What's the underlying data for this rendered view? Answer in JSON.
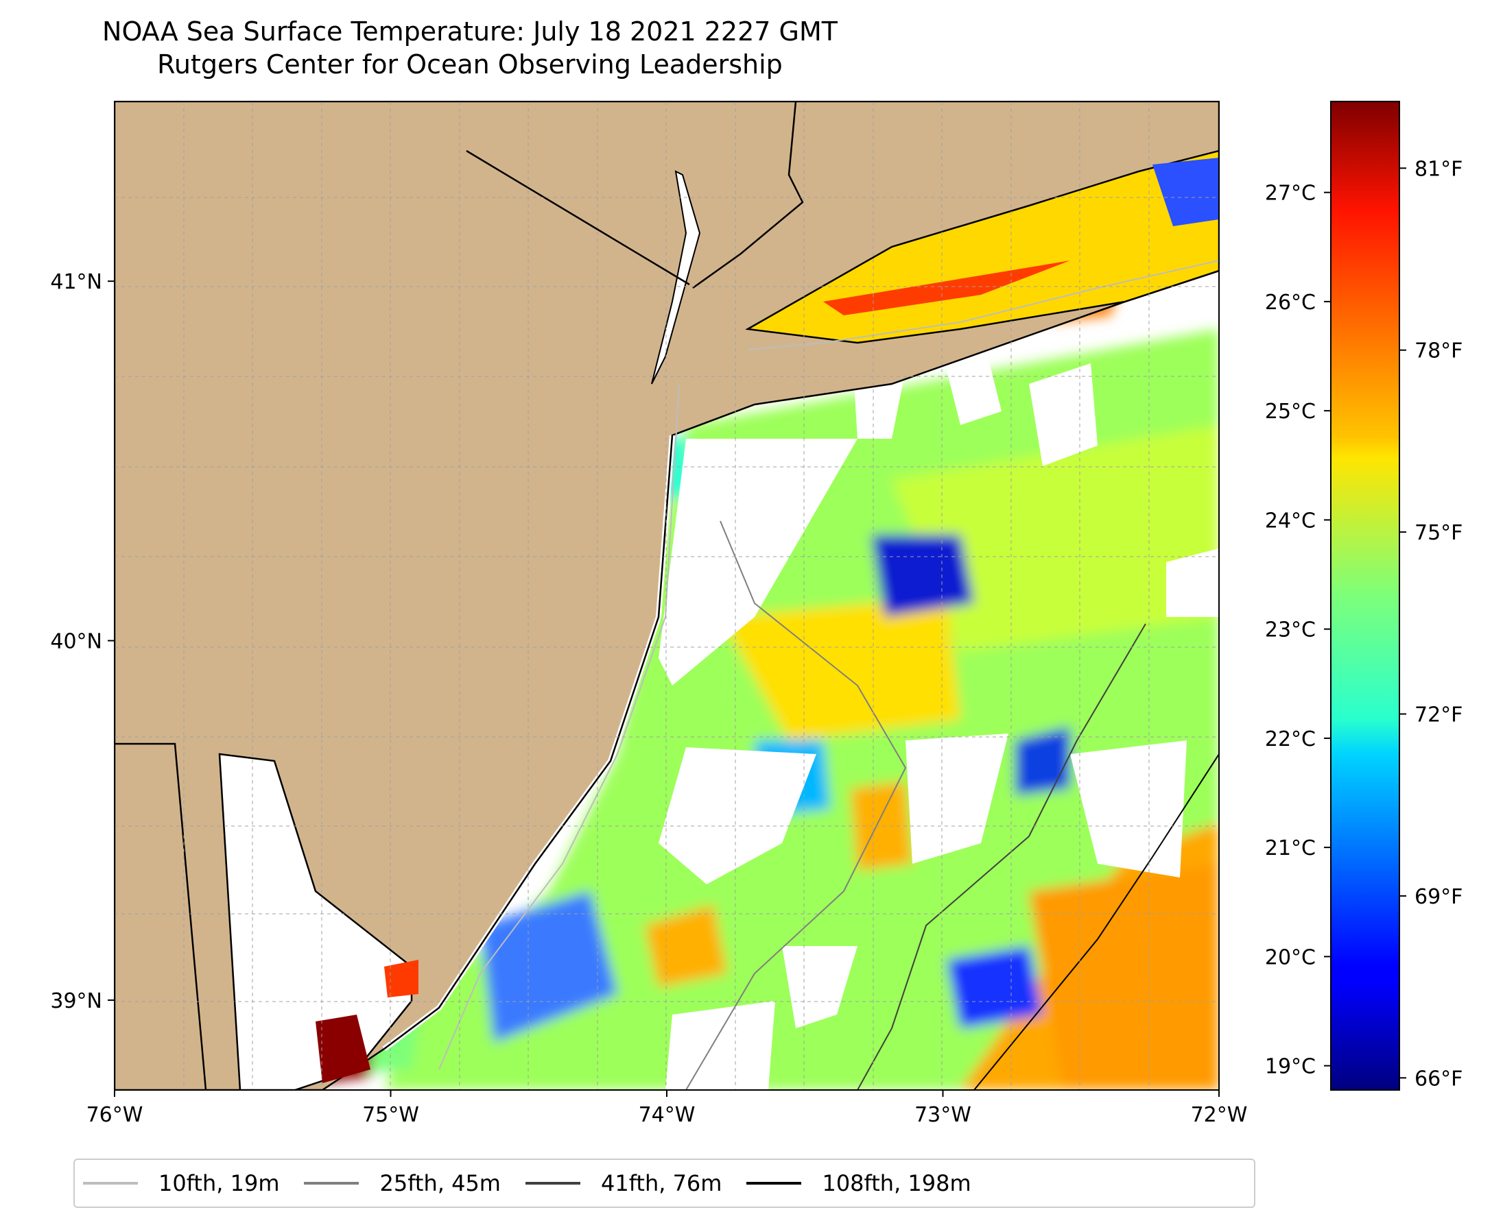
{
  "title": {
    "line1": "NOAA Sea Surface Temperature: July 18 2021 2227 GMT",
    "line2": "Rutgers Center for Ocean Observing Leadership"
  },
  "map": {
    "extent": {
      "lon": [
        -76,
        -72
      ],
      "lat": [
        38.75,
        41.5
      ]
    },
    "lon_ticks": [
      -76,
      -75,
      -74,
      -73,
      -72
    ],
    "lon_labels": [
      "76°W",
      "75°W",
      "74°W",
      "73°W",
      "72°W"
    ],
    "lat_ticks": [
      39,
      40,
      41
    ],
    "lat_labels": [
      "39°N",
      "40°N",
      "41°N"
    ],
    "land_color": "#d2b48c",
    "grid": true
  },
  "colorbar": {
    "colormap": "jet",
    "celsius_labels": [
      "19°C",
      "20°C",
      "21°C",
      "22°C",
      "23°C",
      "24°C",
      "25°C",
      "26°C",
      "27°C"
    ],
    "celsius_values": [
      19,
      20,
      21,
      22,
      23,
      24,
      25,
      26,
      27
    ],
    "fahrenheit_labels": [
      "66°F",
      "69°F",
      "72°F",
      "75°F",
      "78°F",
      "81°F"
    ],
    "fahrenheit_values": [
      66,
      69,
      72,
      75,
      78,
      81
    ],
    "range_f": [
      65.8,
      82.1
    ]
  },
  "legend": [
    {
      "label": "10fth, 19m",
      "color": "#bdbdbd"
    },
    {
      "label": "25fth, 45m",
      "color": "#7f7f7f"
    },
    {
      "label": "41fth, 76m",
      "color": "#404040"
    },
    {
      "label": "108fth, 198m",
      "color": "#000000"
    }
  ]
}
